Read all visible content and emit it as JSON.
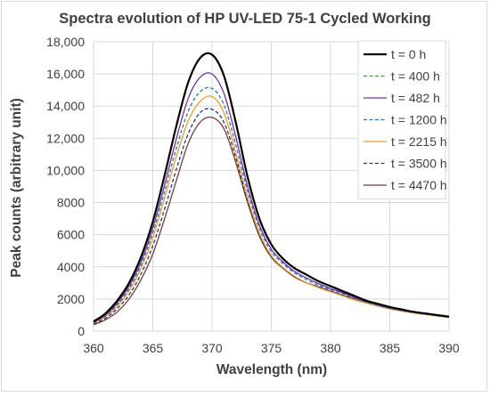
{
  "chart_data": {
    "type": "line",
    "title": "Spectra evolution of HP UV-LED 75-1 Cycled Working",
    "xlabel": "Wavelength (nm)",
    "ylabel": "Peak counts (arbitrary unit)",
    "xlim": [
      360,
      390
    ],
    "ylim": [
      0,
      18000
    ],
    "xticks": [
      360,
      365,
      370,
      375,
      380,
      385,
      390
    ],
    "yticks": [
      0,
      2000,
      4000,
      6000,
      8000,
      10000,
      12000,
      14000,
      16000,
      18000
    ],
    "xtick_labels": [
      "360",
      "365",
      "370",
      "375",
      "380",
      "385",
      "390"
    ],
    "ytick_labels": [
      "0",
      "2000",
      "4000",
      "6000",
      "8000",
      "10,000",
      "12,000",
      "14,000",
      "16,000",
      "18,000"
    ],
    "grid": "both",
    "legend_position": "right",
    "x": [
      360,
      361,
      362,
      363,
      364,
      365,
      366,
      367,
      368,
      369,
      370,
      371,
      372,
      373,
      374,
      375,
      376,
      377,
      378,
      379,
      380,
      381,
      382,
      383,
      384,
      385,
      386,
      387,
      388,
      389,
      390
    ],
    "series": [
      {
        "name": "t = 0 h",
        "color": "#000000",
        "dash": "solid",
        "width": 2.2,
        "values": [
          600,
          1100,
          1900,
          3000,
          4600,
          6800,
          9700,
          12800,
          15500,
          17000,
          17200,
          15900,
          13000,
          9600,
          7000,
          5400,
          4500,
          3900,
          3500,
          3100,
          2800,
          2500,
          2200,
          1900,
          1700,
          1500,
          1350,
          1200,
          1100,
          1000,
          900
        ]
      },
      {
        "name": "t = 400 h",
        "color": "#22cc22",
        "dash": "dashed",
        "width": 1.6,
        "values": [
          600,
          1100,
          1900,
          3000,
          4600,
          6800,
          9700,
          12800,
          15500,
          17000,
          17200,
          15900,
          13000,
          9600,
          7000,
          5400,
          4500,
          3900,
          3500,
          3100,
          2800,
          2500,
          2200,
          1900,
          1700,
          1500,
          1350,
          1200,
          1100,
          1000,
          900
        ]
      },
      {
        "name": "t = 482 h",
        "color": "#7030a0",
        "dash": "solid",
        "width": 1.3,
        "values": [
          550,
          1000,
          1750,
          2800,
          4300,
          6400,
          9100,
          12000,
          14500,
          15800,
          16000,
          14800,
          12100,
          9000,
          6600,
          5100,
          4300,
          3700,
          3300,
          2950,
          2650,
          2400,
          2100,
          1850,
          1650,
          1450,
          1300,
          1180,
          1080,
          980,
          880
        ]
      },
      {
        "name": "t = 1200 h",
        "color": "#2e75b6",
        "dash": "dashed",
        "width": 1.3,
        "values": [
          520,
          950,
          1650,
          2650,
          4100,
          6100,
          8700,
          11400,
          13700,
          14900,
          15100,
          14100,
          11600,
          8700,
          6400,
          4950,
          4200,
          3600,
          3200,
          2850,
          2600,
          2350,
          2050,
          1800,
          1600,
          1420,
          1280,
          1160,
          1060,
          960,
          870
        ]
      },
      {
        "name": "t = 2215 h",
        "color": "#ed9d2d",
        "dash": "solid",
        "width": 1.3,
        "values": [
          500,
          900,
          1550,
          2500,
          3900,
          5800,
          8300,
          10900,
          13100,
          14300,
          14600,
          13600,
          11100,
          8300,
          6100,
          4700,
          3950,
          3400,
          3000,
          2700,
          2450,
          2200,
          1950,
          1750,
          1550,
          1380,
          1250,
          1130,
          1030,
          940,
          860
        ]
      },
      {
        "name": "t = 3500 h",
        "color": "#1f3864",
        "dash": "dashed",
        "width": 1.3,
        "values": [
          450,
          800,
          1400,
          2250,
          3550,
          5300,
          7600,
          10100,
          12300,
          13600,
          13800,
          13000,
          10800,
          8100,
          6000,
          4650,
          3950,
          3400,
          3000,
          2750,
          2500,
          2250,
          2000,
          1780,
          1580,
          1400,
          1260,
          1140,
          1040,
          950,
          870
        ]
      },
      {
        "name": "t = 4470 h",
        "color": "#7b3b3b",
        "dash": "solid",
        "width": 1.3,
        "values": [
          400,
          700,
          1200,
          2000,
          3200,
          4800,
          7000,
          9400,
          11700,
          13000,
          13300,
          12600,
          10500,
          8000,
          5900,
          4600,
          3900,
          3350,
          3000,
          2750,
          2500,
          2250,
          2000,
          1780,
          1580,
          1400,
          1260,
          1140,
          1040,
          950,
          870
        ]
      }
    ]
  }
}
